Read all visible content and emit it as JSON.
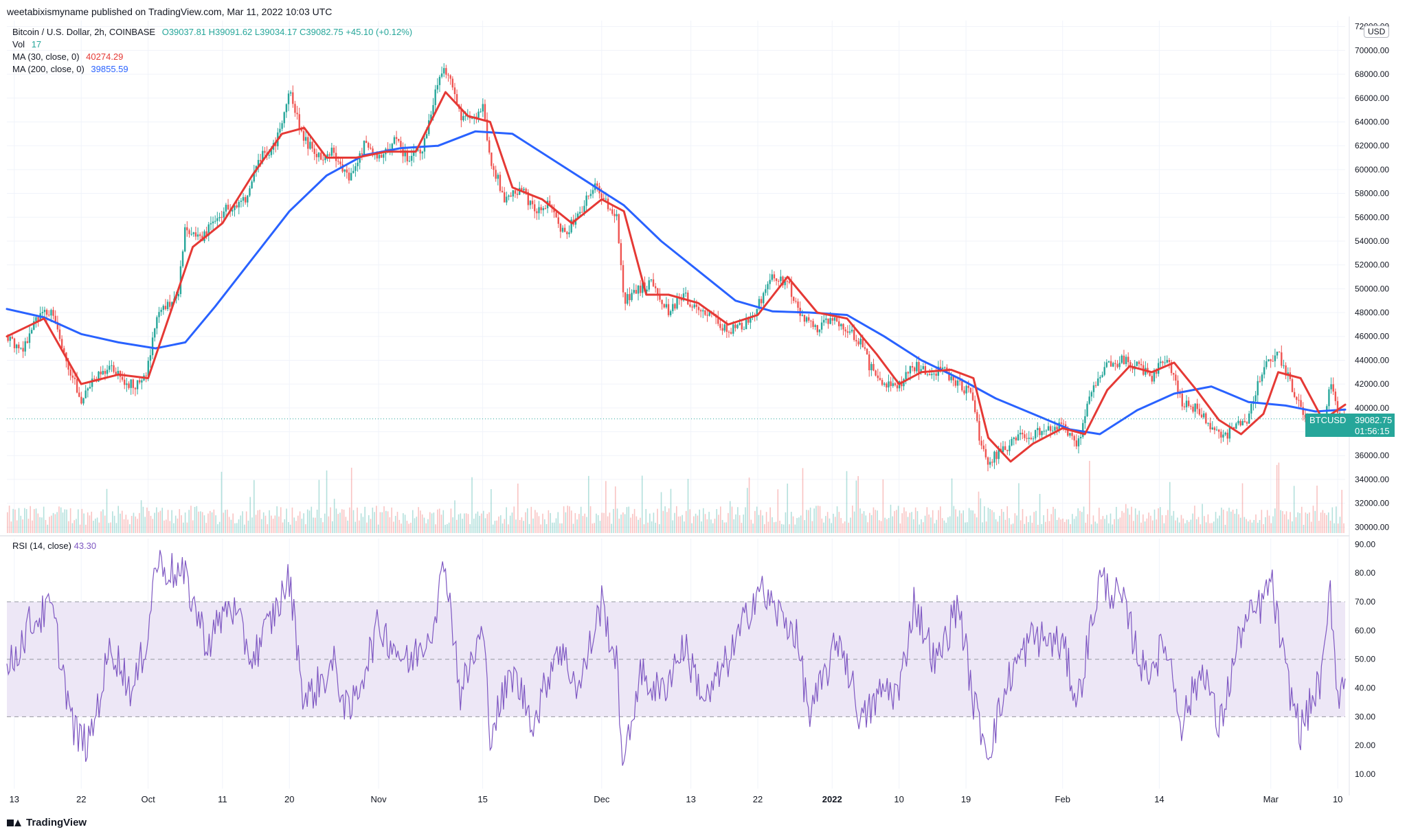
{
  "publisher_line": "weetabixismyname published on TradingView.com, Mar 11, 2022 10:03 UTC",
  "legend": {
    "symbol": "Bitcoin / U.S. Dollar, 2h, COINBASE",
    "open": "O39037.81",
    "high": "H39091.62",
    "low": "L39034.17",
    "close": "C39082.75",
    "change": "+45.10 (+0.12%)",
    "vol_label": "Vol",
    "vol_value": "17",
    "ma30_label": "MA (30, close, 0)",
    "ma30_value": "40274.29",
    "ma200_label": "MA (200, close, 0)",
    "ma200_value": "39855.59"
  },
  "rsi_legend": {
    "label": "RSI (14, close)",
    "value": "43.30"
  },
  "currency_badge": "USD",
  "price_tag": {
    "symbol": "BTCUSD",
    "price": "39082.75",
    "countdown": "01:56:15"
  },
  "footer": {
    "brand": "TradingView"
  },
  "colors": {
    "up": "#26a69a",
    "down": "#ef5350",
    "ma30": "#e53935",
    "ma200": "#2962ff",
    "rsi": "#7e57c2",
    "rsi_band": "#ede7f6"
  },
  "chart_data": [
    {
      "type": "candlestick",
      "price_axis": {
        "ylim": [
          29500,
          72500
        ],
        "ticks": [
          30000,
          32000,
          34000,
          36000,
          38000,
          40000,
          42000,
          44000,
          46000,
          48000,
          50000,
          52000,
          54000,
          56000,
          58000,
          60000,
          62000,
          64000,
          66000,
          68000,
          70000,
          72000
        ],
        "tick_labels": [
          "30000.00",
          "32000.00",
          "34000.00",
          "36000.00",
          "38000.00",
          "40000.00",
          "42000.00",
          "44000.00",
          "46000.00",
          "48000.00",
          "50000.00",
          "52000.00",
          "54000.00",
          "56000.00",
          "58000.00",
          "60000.00",
          "62000.00",
          "64000.00",
          "66000.00",
          "68000.00",
          "70000.00",
          "72000.00"
        ]
      },
      "time_axis": {
        "xlim": [
          "2021-09-12",
          "2022-03-11"
        ],
        "ticks": [
          {
            "date": "2021-09-13",
            "label": "13"
          },
          {
            "date": "2021-09-22",
            "label": "22"
          },
          {
            "date": "2021-10-01",
            "label": "Oct"
          },
          {
            "date": "2021-10-11",
            "label": "11"
          },
          {
            "date": "2021-10-20",
            "label": "20"
          },
          {
            "date": "2021-11-01",
            "label": "Nov"
          },
          {
            "date": "2021-11-15",
            "label": "15"
          },
          {
            "date": "2021-12-01",
            "label": "Dec"
          },
          {
            "date": "2021-12-13",
            "label": "13"
          },
          {
            "date": "2021-12-22",
            "label": "22"
          },
          {
            "date": "2022-01-01",
            "label": "2022"
          },
          {
            "date": "2022-01-10",
            "label": "10"
          },
          {
            "date": "2022-01-19",
            "label": "19"
          },
          {
            "date": "2022-02-01",
            "label": "Feb"
          },
          {
            "date": "2022-02-14",
            "label": "14"
          },
          {
            "date": "2022-03-01",
            "label": "Mar"
          },
          {
            "date": "2022-03-10",
            "label": "10"
          }
        ]
      },
      "last_price": 39082.75,
      "price_path": [
        [
          "2021-09-12",
          46000
        ],
        [
          "2021-09-14",
          44500
        ],
        [
          "2021-09-16",
          47500
        ],
        [
          "2021-09-18",
          48200
        ],
        [
          "2021-09-20",
          44000
        ],
        [
          "2021-09-22",
          40800
        ],
        [
          "2021-09-24",
          42500
        ],
        [
          "2021-09-26",
          43200
        ],
        [
          "2021-09-28",
          42200
        ],
        [
          "2021-09-30",
          41800
        ],
        [
          "2021-10-01",
          43500
        ],
        [
          "2021-10-02",
          47500
        ],
        [
          "2021-10-05",
          49500
        ],
        [
          "2021-10-06",
          55000
        ],
        [
          "2021-10-08",
          54000
        ],
        [
          "2021-10-11",
          56500
        ],
        [
          "2021-10-14",
          57500
        ],
        [
          "2021-10-16",
          61000
        ],
        [
          "2021-10-18",
          62000
        ],
        [
          "2021-10-20",
          66500
        ],
        [
          "2021-10-22",
          62500
        ],
        [
          "2021-10-24",
          61000
        ],
        [
          "2021-10-26",
          61500
        ],
        [
          "2021-10-28",
          59000
        ],
        [
          "2021-10-30",
          62000
        ],
        [
          "2021-11-01",
          61000
        ],
        [
          "2021-11-03",
          62500
        ],
        [
          "2021-11-05",
          61000
        ],
        [
          "2021-11-07",
          62000
        ],
        [
          "2021-11-09",
          67500
        ],
        [
          "2021-11-10",
          68500
        ],
        [
          "2021-11-12",
          64500
        ],
        [
          "2021-11-14",
          64200
        ],
        [
          "2021-11-15",
          65500
        ],
        [
          "2021-11-16",
          61000
        ],
        [
          "2021-11-18",
          57500
        ],
        [
          "2021-11-20",
          58500
        ],
        [
          "2021-11-22",
          56500
        ],
        [
          "2021-11-24",
          57000
        ],
        [
          "2021-11-26",
          54500
        ],
        [
          "2021-11-28",
          56500
        ],
        [
          "2021-11-30",
          58500
        ],
        [
          "2021-12-02",
          57000
        ],
        [
          "2021-12-03",
          56000
        ],
        [
          "2021-12-04",
          49000
        ],
        [
          "2021-12-06",
          50000
        ],
        [
          "2021-12-08",
          50500
        ],
        [
          "2021-12-10",
          48000
        ],
        [
          "2021-12-12",
          49500
        ],
        [
          "2021-12-14",
          48000
        ],
        [
          "2021-12-16",
          47500
        ],
        [
          "2021-12-18",
          46500
        ],
        [
          "2021-12-20",
          46800
        ],
        [
          "2021-12-22",
          48500
        ],
        [
          "2021-12-24",
          51000
        ],
        [
          "2021-12-26",
          50500
        ],
        [
          "2021-12-28",
          47500
        ],
        [
          "2021-12-30",
          46500
        ],
        [
          "2022-01-01",
          47500
        ],
        [
          "2022-01-03",
          46500
        ],
        [
          "2022-01-05",
          45500
        ],
        [
          "2022-01-06",
          43500
        ],
        [
          "2022-01-08",
          41800
        ],
        [
          "2022-01-10",
          41800
        ],
        [
          "2022-01-12",
          43500
        ],
        [
          "2022-01-14",
          43000
        ],
        [
          "2022-01-16",
          43200
        ],
        [
          "2022-01-18",
          42000
        ],
        [
          "2022-01-20",
          41000
        ],
        [
          "2022-01-21",
          36500
        ],
        [
          "2022-01-22",
          35500
        ],
        [
          "2022-01-24",
          36500
        ],
        [
          "2022-01-26",
          37500
        ],
        [
          "2022-01-28",
          37800
        ],
        [
          "2022-01-30",
          38200
        ],
        [
          "2022-02-01",
          38500
        ],
        [
          "2022-02-03",
          37000
        ],
        [
          "2022-02-05",
          41500
        ],
        [
          "2022-02-07",
          43500
        ],
        [
          "2022-02-09",
          44000
        ],
        [
          "2022-02-11",
          43500
        ],
        [
          "2022-02-13",
          42500
        ],
        [
          "2022-02-15",
          44500
        ],
        [
          "2022-02-17",
          40500
        ],
        [
          "2022-02-19",
          40000
        ],
        [
          "2022-02-21",
          38500
        ],
        [
          "2022-02-23",
          37500
        ],
        [
          "2022-02-24",
          38500
        ],
        [
          "2022-02-26",
          39200
        ],
        [
          "2022-02-28",
          43500
        ],
        [
          "2022-03-02",
          44500
        ],
        [
          "2022-03-04",
          41500
        ],
        [
          "2022-03-06",
          38500
        ],
        [
          "2022-03-08",
          38500
        ],
        [
          "2022-03-09",
          42000
        ],
        [
          "2022-03-10",
          39500
        ],
        [
          "2022-03-11",
          39082.75
        ]
      ],
      "ma30_path": [
        [
          "2021-09-12",
          46000
        ],
        [
          "2021-09-17",
          47500
        ],
        [
          "2021-09-22",
          42000
        ],
        [
          "2021-09-27",
          42800
        ],
        [
          "2021-10-01",
          42500
        ],
        [
          "2021-10-04",
          48000
        ],
        [
          "2021-10-07",
          53500
        ],
        [
          "2021-10-11",
          55500
        ],
        [
          "2021-10-15",
          59500
        ],
        [
          "2021-10-19",
          63000
        ],
        [
          "2021-10-22",
          63500
        ],
        [
          "2021-10-25",
          61000
        ],
        [
          "2021-10-29",
          61000
        ],
        [
          "2021-11-02",
          61500
        ],
        [
          "2021-11-06",
          61500
        ],
        [
          "2021-11-10",
          66500
        ],
        [
          "2021-11-13",
          64500
        ],
        [
          "2021-11-16",
          64000
        ],
        [
          "2021-11-19",
          58500
        ],
        [
          "2021-11-23",
          57500
        ],
        [
          "2021-11-27",
          55500
        ],
        [
          "2021-12-01",
          57500
        ],
        [
          "2021-12-04",
          56500
        ],
        [
          "2021-12-07",
          49500
        ],
        [
          "2021-12-10",
          49500
        ],
        [
          "2021-12-14",
          48800
        ],
        [
          "2021-12-18",
          47000
        ],
        [
          "2021-12-22",
          47800
        ],
        [
          "2021-12-26",
          51000
        ],
        [
          "2021-12-30",
          48000
        ],
        [
          "2022-01-03",
          47500
        ],
        [
          "2022-01-07",
          44500
        ],
        [
          "2022-01-10",
          42000
        ],
        [
          "2022-01-13",
          43000
        ],
        [
          "2022-01-17",
          43200
        ],
        [
          "2022-01-20",
          42500
        ],
        [
          "2022-01-22",
          37500
        ],
        [
          "2022-01-25",
          35500
        ],
        [
          "2022-01-28",
          37000
        ],
        [
          "2022-02-01",
          38300
        ],
        [
          "2022-02-04",
          37800
        ],
        [
          "2022-02-07",
          41500
        ],
        [
          "2022-02-10",
          43500
        ],
        [
          "2022-02-13",
          43000
        ],
        [
          "2022-02-16",
          43800
        ],
        [
          "2022-02-19",
          41500
        ],
        [
          "2022-02-22",
          39000
        ],
        [
          "2022-02-25",
          37800
        ],
        [
          "2022-02-28",
          39500
        ],
        [
          "2022-03-02",
          43000
        ],
        [
          "2022-03-05",
          42500
        ],
        [
          "2022-03-08",
          39000
        ],
        [
          "2022-03-11",
          40274.29
        ]
      ],
      "ma200_path": [
        [
          "2021-09-12",
          48300
        ],
        [
          "2021-09-17",
          47600
        ],
        [
          "2021-09-22",
          46200
        ],
        [
          "2021-09-27",
          45500
        ],
        [
          "2021-10-02",
          45000
        ],
        [
          "2021-10-06",
          45500
        ],
        [
          "2021-10-10",
          48500
        ],
        [
          "2021-10-15",
          52500
        ],
        [
          "2021-10-20",
          56500
        ],
        [
          "2021-10-25",
          59500
        ],
        [
          "2021-10-30",
          61200
        ],
        [
          "2021-11-04",
          61800
        ],
        [
          "2021-11-09",
          62000
        ],
        [
          "2021-11-14",
          63200
        ],
        [
          "2021-11-19",
          63000
        ],
        [
          "2021-11-24",
          61000
        ],
        [
          "2021-11-29",
          59000
        ],
        [
          "2021-12-04",
          57000
        ],
        [
          "2021-12-09",
          54000
        ],
        [
          "2021-12-14",
          51500
        ],
        [
          "2021-12-19",
          49000
        ],
        [
          "2021-12-24",
          48100
        ],
        [
          "2021-12-29",
          48000
        ],
        [
          "2022-01-03",
          47800
        ],
        [
          "2022-01-08",
          46000
        ],
        [
          "2022-01-13",
          44000
        ],
        [
          "2022-01-18",
          42500
        ],
        [
          "2022-01-23",
          40800
        ],
        [
          "2022-01-28",
          39500
        ],
        [
          "2022-02-02",
          38200
        ],
        [
          "2022-02-06",
          37800
        ],
        [
          "2022-02-11",
          39800
        ],
        [
          "2022-02-16",
          41200
        ],
        [
          "2022-02-21",
          41800
        ],
        [
          "2022-02-26",
          40500
        ],
        [
          "2022-03-03",
          40200
        ],
        [
          "2022-03-07",
          39700
        ],
        [
          "2022-03-11",
          39855.59
        ]
      ]
    },
    {
      "type": "line",
      "name": "RSI (14, close)",
      "ylim": [
        5,
        92
      ],
      "ticks": [
        10,
        20,
        30,
        40,
        50,
        60,
        70,
        80,
        90
      ],
      "tick_labels": [
        "10.00",
        "20.00",
        "30.00",
        "40.00",
        "50.00",
        "60.00",
        "70.00",
        "80.00",
        "90.00"
      ],
      "band": [
        30,
        70
      ],
      "midline": 50,
      "last_value": 43.3,
      "rsi_path": [
        [
          "2021-09-12",
          45
        ],
        [
          "2021-09-15",
          62
        ],
        [
          "2021-09-18",
          68
        ],
        [
          "2021-09-21",
          25
        ],
        [
          "2021-09-23",
          20
        ],
        [
          "2021-09-26",
          55
        ],
        [
          "2021-09-29",
          38
        ],
        [
          "2021-10-01",
          60
        ],
        [
          "2021-10-02",
          84
        ],
        [
          "2021-10-06",
          78
        ],
        [
          "2021-10-09",
          55
        ],
        [
          "2021-10-12",
          70
        ],
        [
          "2021-10-15",
          50
        ],
        [
          "2021-10-18",
          66
        ],
        [
          "2021-10-20",
          78
        ],
        [
          "2021-10-22",
          35
        ],
        [
          "2021-10-26",
          48
        ],
        [
          "2021-10-28",
          30
        ],
        [
          "2021-11-01",
          62
        ],
        [
          "2021-11-05",
          48
        ],
        [
          "2021-11-08",
          60
        ],
        [
          "2021-11-10",
          84
        ],
        [
          "2021-11-12",
          38
        ],
        [
          "2021-11-15",
          60
        ],
        [
          "2021-11-16",
          25
        ],
        [
          "2021-11-19",
          45
        ],
        [
          "2021-11-22",
          28
        ],
        [
          "2021-11-25",
          55
        ],
        [
          "2021-11-28",
          40
        ],
        [
          "2021-12-01",
          70
        ],
        [
          "2021-12-03",
          48
        ],
        [
          "2021-12-04",
          11
        ],
        [
          "2021-12-06",
          45
        ],
        [
          "2021-12-09",
          38
        ],
        [
          "2021-12-12",
          55
        ],
        [
          "2021-12-15",
          35
        ],
        [
          "2021-12-19",
          55
        ],
        [
          "2021-12-22",
          75
        ],
        [
          "2021-12-25",
          65
        ],
        [
          "2021-12-27",
          60
        ],
        [
          "2021-12-29",
          30
        ],
        [
          "2022-01-02",
          58
        ],
        [
          "2022-01-05",
          28
        ],
        [
          "2022-01-08",
          40
        ],
        [
          "2022-01-10",
          38
        ],
        [
          "2022-01-12",
          70
        ],
        [
          "2022-01-15",
          48
        ],
        [
          "2022-01-18",
          70
        ],
        [
          "2022-01-20",
          35
        ],
        [
          "2022-01-22",
          18
        ],
        [
          "2022-01-25",
          45
        ],
        [
          "2022-01-28",
          58
        ],
        [
          "2022-02-01",
          55
        ],
        [
          "2022-02-03",
          35
        ],
        [
          "2022-02-06",
          78
        ],
        [
          "2022-02-09",
          70
        ],
        [
          "2022-02-12",
          45
        ],
        [
          "2022-02-15",
          55
        ],
        [
          "2022-02-17",
          28
        ],
        [
          "2022-02-20",
          48
        ],
        [
          "2022-02-22",
          25
        ],
        [
          "2022-02-25",
          60
        ],
        [
          "2022-02-28",
          70
        ],
        [
          "2022-03-01",
          78
        ],
        [
          "2022-03-03",
          45
        ],
        [
          "2022-03-05",
          25
        ],
        [
          "2022-03-08",
          45
        ],
        [
          "2022-03-09",
          74
        ],
        [
          "2022-03-10",
          38
        ],
        [
          "2022-03-11",
          43.3
        ]
      ]
    }
  ]
}
